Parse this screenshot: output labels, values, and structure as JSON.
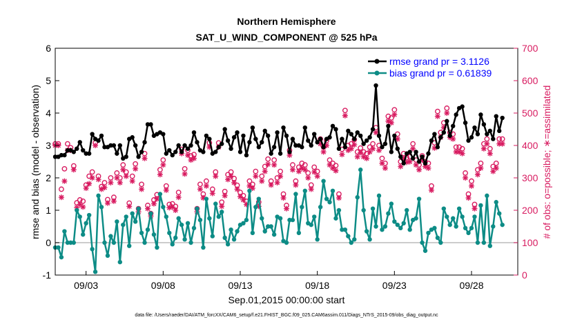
{
  "chart_data": {
    "type": "line",
    "title": "Northern Hemisphere",
    "subtitle": "SAT_U_WIND_COMPONENT @ 525 hPa",
    "xlabel": "Sep.01,2015 00:00:00 start",
    "ylabel_left": "rmse and bias (model - observation)",
    "ylabel_right": "# of obs: o=possible; ∗=assimilated",
    "footnote": "data file: /Users/raeder/DAI/ATM_forcXX/CAM6_setup/f.e21.FHIST_BGC.f09_025.CAM6assim.011/Diags_NTrS_2015-09/obs_diag_output.nc",
    "x_ticks": [
      "09/03",
      "09/08",
      "09/13",
      "09/18",
      "09/23",
      "09/28"
    ],
    "x_tick_days": [
      3,
      8,
      13,
      18,
      23,
      28
    ],
    "xlim": [
      1,
      31
    ],
    "ylim_left": [
      -1,
      6
    ],
    "ylim_right": [
      0,
      700
    ],
    "yticks_left": [
      "-1",
      "0",
      "1",
      "2",
      "3",
      "4",
      "5",
      "6"
    ],
    "yticks_right": [
      "0",
      "100",
      "200",
      "300",
      "400",
      "500",
      "600",
      "700"
    ],
    "legend": [
      "rmse grand pr = 3.1126",
      "bias grand pr = 0.61839"
    ],
    "series": [
      {
        "name": "rmse",
        "color": "#000000",
        "values": [
          2.65,
          2.65,
          2.7,
          2.7,
          2.85,
          2.85,
          2.8,
          2.9,
          3.1,
          2.85,
          2.75,
          2.75,
          3.35,
          3.2,
          3.15,
          3.3,
          2.95,
          2.95,
          3.0,
          3.0,
          2.75,
          3.0,
          2.6,
          2.65,
          3.2,
          3.25,
          3.0,
          2.65,
          2.8,
          3.1,
          3.65,
          3.65,
          3.3,
          3.35,
          3.4,
          3.35,
          2.75,
          2.85,
          2.7,
          2.8,
          3.0,
          2.8,
          3.0,
          2.9,
          3.0,
          3.4,
          3.1,
          2.85,
          2.8,
          3.3,
          3.2,
          2.75,
          2.8,
          2.95,
          3.05,
          3.5,
          3.15,
          2.9,
          3.25,
          3.4,
          2.8,
          3.3,
          2.7,
          3.1,
          3.55,
          3.2,
          2.95,
          3.1,
          3.45,
          3.3,
          2.75,
          2.95,
          3.4,
          2.75,
          3.55,
          3.3,
          2.8,
          3.2,
          3.0,
          3.0,
          2.95,
          3.55,
          3.15,
          3.0,
          3.35,
          3.1,
          3.2,
          2.95,
          3.2,
          3.25,
          3.6,
          3.5,
          2.9,
          3.2,
          2.95,
          3.45,
          3.35,
          3.2,
          3.4,
          3.3,
          3.05,
          3.15,
          3.25,
          3.5,
          4.85,
          3.3,
          2.95,
          3.05,
          3.6,
          2.8,
          3.3,
          2.9,
          2.65,
          2.45,
          2.75,
          2.8,
          2.6,
          2.8,
          2.5,
          2.65,
          2.45,
          2.75,
          3.15,
          3.35,
          2.95,
          3.25,
          3.4,
          3.75,
          3.3,
          3.6,
          3.95,
          4.15,
          4.2,
          3.7,
          3.15,
          3.25,
          3.55,
          3.35,
          3.95,
          3.65,
          3.35,
          3.45,
          3.2,
          3.9,
          3.45,
          3.85
        ]
      },
      {
        "name": "bias",
        "color": "#0d8c86",
        "values": [
          -0.15,
          -0.15,
          -0.45,
          0.35,
          0.0,
          0.0,
          0.0,
          1.0,
          0.8,
          0.25,
          0.6,
          0.85,
          -0.2,
          -0.9,
          1.45,
          1.1,
          0.0,
          -0.4,
          0.2,
          0.0,
          0.65,
          -0.6,
          0.55,
          0.8,
          -0.1,
          0.9,
          0.65,
          1.05,
          0.3,
          0.0,
          0.4,
          0.9,
          0.25,
          -0.15,
          1.5,
          1.1,
          0.8,
          0.3,
          -0.05,
          0.15,
          0.75,
          0.55,
          0.1,
          0.6,
          0.0,
          0.45,
          1.05,
          0.7,
          -0.15,
          1.35,
          0.75,
          0.2,
          1.2,
          0.8,
          0.95,
          0.15,
          -0.05,
          0.4,
          0.1,
          0.35,
          0.55,
          0.6,
          0.7,
          1.6,
          0.3,
          1.1,
          1.35,
          0.75,
          0.35,
          0.5,
          0.5,
          0.25,
          0.8,
          0.75,
          0.05,
          0.0,
          0.7,
          0.7,
          1.5,
          0.3,
          1.1,
          1.6,
          0.6,
          0.55,
          0.8,
          0.1,
          1.1,
          1.9,
          1.35,
          1.25,
          1.6,
          0.75,
          1.0,
          0.4,
          0.4,
          0.2,
          0.0,
          0.1,
          1.4,
          2.25,
          1.0,
          0.35,
          0.1,
          1.05,
          0.5,
          1.45,
          0.4,
          0.5,
          0.9,
          1.2,
          0.65,
          0.55,
          0.45,
          0.6,
          1.0,
          0.4,
          0.7,
          0.75,
          1.35,
          0.0,
          -0.25,
          0.3,
          0.4,
          0.45,
          0.15,
          0.0,
          1.05,
          0.8,
          0.55,
          0.75,
          0.5,
          1.05,
          0.8,
          0.45,
          0.3,
          0.45,
          0.8,
          0.0,
          1.15,
          0.0,
          1.45,
          -0.1,
          0.5,
          1.25,
          0.9,
          0.55
        ]
      },
      {
        "name": "obs possible",
        "color": "#d81b60",
        "marker": "o",
        "values": [
          405,
          405,
          265,
          328,
          405,
          393,
          337,
          223,
          232,
          228,
          278,
          305,
          318,
          408,
          305,
          273,
          285,
          233,
          300,
          240,
          315,
          300,
          340,
          318,
          222,
          305,
          343,
          205,
          280,
          375,
          215,
          190,
          232,
          248,
          325,
          355,
          275,
          218,
          220,
          212,
          255,
          388,
          328,
          385,
          368,
          372,
          205,
          280,
          250,
          290,
          408,
          265,
          318,
          408,
          225,
          258,
          310,
          318,
          298,
          277,
          255,
          245,
          228,
          290,
          280,
          320,
          225,
          305,
          335,
          358,
          290,
          355,
          300,
          320,
          250,
          215,
          385,
          340,
          290,
          333,
          345,
          340,
          315,
          278,
          333,
          320,
          420,
          395,
          415,
          355,
          345,
          338,
          250,
          388,
          508,
          400,
          405,
          418,
          380,
          392,
          380,
          375,
          395,
          405,
          455,
          400,
          360,
          345,
          490,
          485,
          510,
          435,
          350,
          375,
          362,
          365,
          405,
          355,
          340,
          368,
          350,
          345,
          275,
          408,
          505,
          440,
          470,
          515,
          440,
          435,
          395,
          395,
          390,
          315,
          250,
          290,
          218,
          325,
          345,
          405,
          420,
          390,
          335,
          345,
          420,
          420
        ]
      },
      {
        "name": "obs assimilated",
        "color": "#d81b60",
        "marker": "*",
        "values": [
          400,
          400,
          240,
          290,
          385,
          385,
          325,
          208,
          218,
          210,
          268,
          282,
          300,
          400,
          295,
          265,
          270,
          222,
          285,
          228,
          300,
          285,
          325,
          305,
          212,
          290,
          328,
          195,
          265,
          360,
          205,
          182,
          220,
          235,
          310,
          340,
          262,
          208,
          210,
          200,
          240,
          375,
          312,
          370,
          355,
          360,
          195,
          265,
          238,
          275,
          395,
          252,
          305,
          395,
          212,
          245,
          295,
          305,
          285,
          265,
          242,
          232,
          218,
          275,
          268,
          305,
          212,
          290,
          320,
          342,
          278,
          340,
          285,
          305,
          238,
          205,
          370,
          325,
          278,
          320,
          330,
          325,
          300,
          265,
          318,
          305,
          405,
          380,
          400,
          340,
          330,
          322,
          238,
          372,
          492,
          385,
          390,
          402,
          365,
          378,
          365,
          360,
          380,
          390,
          440,
          385,
          345,
          330,
          475,
          470,
          495,
          420,
          335,
          360,
          348,
          350,
          390,
          340,
          325,
          355,
          335,
          330,
          262,
          392,
          490,
          425,
          455,
          500,
          425,
          420,
          380,
          380,
          375,
          300,
          238,
          275,
          205,
          310,
          330,
          390,
          405,
          375,
          320,
          330,
          405,
          405
        ]
      }
    ]
  }
}
